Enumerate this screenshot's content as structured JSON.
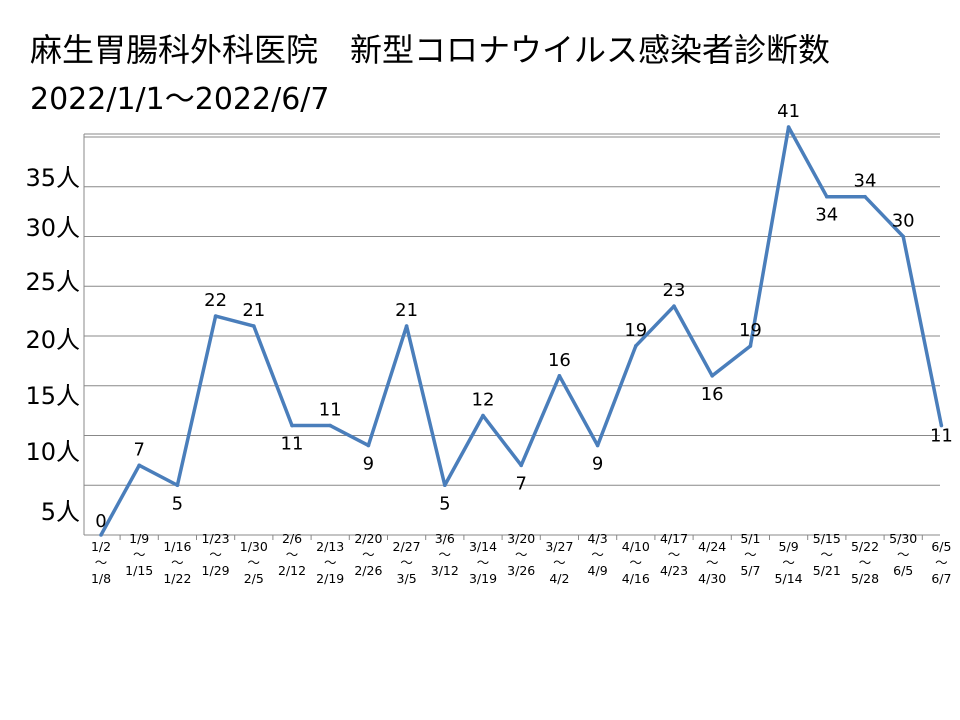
{
  "title": "麻生胃腸科外科医院　新型コロナウイルス感染者診断数",
  "subtitle": "2022/1/1～2022/6/7",
  "chart_data": {
    "type": "line",
    "title": "麻生胃腸科外科医院　新型コロナウイルス感染者診断数",
    "subtitle": "2022/1/1～2022/6/7",
    "y_unit": "人",
    "y_ticks": [
      "5人",
      "10人",
      "15人",
      "20人",
      "25人",
      "30人",
      "35人"
    ],
    "grid": true,
    "legend": "none",
    "line_color": "#4a7ebb",
    "categories": [
      [
        "1/2",
        "～",
        "1/8"
      ],
      [
        "1/9",
        "～",
        "1/15"
      ],
      [
        "1/16",
        "～",
        "1/22"
      ],
      [
        "1/23",
        "～",
        "1/29"
      ],
      [
        "1/30",
        "～",
        "2/5"
      ],
      [
        "2/6",
        "～",
        "2/12"
      ],
      [
        "2/13",
        "～",
        "2/19"
      ],
      [
        "2/20",
        "～",
        "2/26"
      ],
      [
        "2/27",
        "～",
        "3/5"
      ],
      [
        "3/6",
        "～",
        "3/12"
      ],
      [
        "3/14",
        "～",
        "3/19"
      ],
      [
        "3/20",
        "～",
        "3/26"
      ],
      [
        "3/27",
        "～",
        "4/2"
      ],
      [
        "4/3",
        "～",
        "4/9"
      ],
      [
        "4/10",
        "～",
        "4/16"
      ],
      [
        "4/17",
        "～",
        "4/23"
      ],
      [
        "4/24",
        "～",
        "4/30"
      ],
      [
        "5/1",
        "～",
        "5/7"
      ],
      [
        "5/9",
        "～",
        "5/14"
      ],
      [
        "5/15",
        "～",
        "5/21"
      ],
      [
        "5/22",
        "～",
        "5/28"
      ],
      [
        "5/30",
        "～",
        "6/5"
      ],
      [
        "6/5",
        "～",
        "6/7"
      ]
    ],
    "values": [
      0,
      7,
      5,
      22,
      21,
      11,
      11,
      9,
      21,
      5,
      12,
      7,
      16,
      9,
      19,
      23,
      16,
      19,
      41,
      34,
      34,
      30,
      11
    ]
  }
}
